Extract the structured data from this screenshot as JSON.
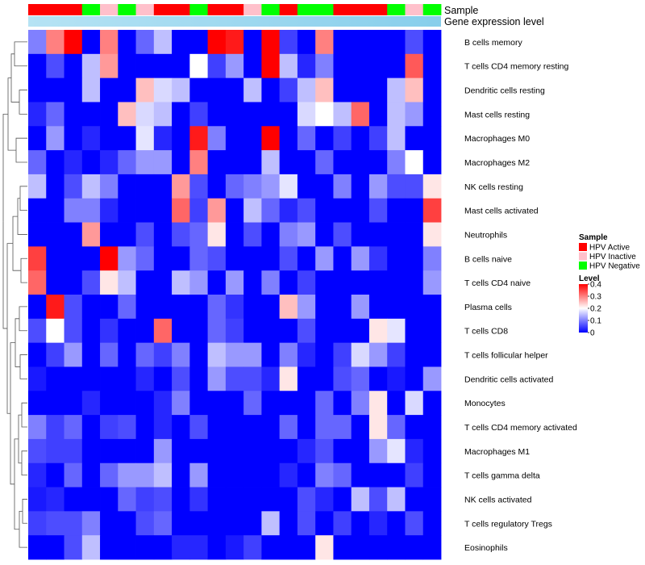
{
  "chart_data": {
    "type": "heatmap",
    "title": "",
    "track_labels": {
      "sample": "Sample",
      "gene_expression": "Gene expression level"
    },
    "rows": [
      "B cells memory",
      "T cells CD4 memory resting",
      "Dendritic cells resting",
      "Mast cells resting",
      "Macrophages M0",
      "Macrophages M2",
      "NK cells resting",
      "Mast cells activated",
      "Neutrophils",
      "B cells naive",
      "T cells CD4 naive",
      "Plasma cells",
      "T cells CD8",
      "T cells follicular helper",
      "Dendritic cells activated",
      "Monocytes",
      "T cells CD4 memory activated",
      "Macrophages M1",
      "T cells gamma delta",
      "NK cells activated",
      "T cells regulatory  Tregs",
      "Eosinophils"
    ],
    "samples": [
      "HPV Active",
      "HPV Active",
      "HPV Active",
      "HPV Negative",
      "HPV Inactive",
      "HPV Negative",
      "HPV Inactive",
      "HPV Active",
      "HPV Active",
      "HPV Negative",
      "HPV Active",
      "HPV Active",
      "HPV Inactive",
      "HPV Negative",
      "HPV Active",
      "HPV Negative",
      "HPV Negative",
      "HPV Active",
      "HPV Active",
      "HPV Active",
      "HPV Negative",
      "HPV Inactive",
      "HPV Negative"
    ],
    "values": [
      [
        0.1,
        0.3,
        0.4,
        0.0,
        0.3,
        0.0,
        0.08,
        0.15,
        0.0,
        0.0,
        0.4,
        0.38,
        0.0,
        0.4,
        0.05,
        0.0,
        0.3,
        0.0,
        0.0,
        0.0,
        0.0,
        0.06,
        0.0
      ],
      [
        0.0,
        0.06,
        0.0,
        0.15,
        0.28,
        0.0,
        0.0,
        0.0,
        0.0,
        0.2,
        0.05,
        0.12,
        0.0,
        0.4,
        0.15,
        0.03,
        0.1,
        0.0,
        0.0,
        0.0,
        0.0,
        0.33,
        0.0
      ],
      [
        0.0,
        0.0,
        0.0,
        0.15,
        0.0,
        0.0,
        0.25,
        0.17,
        0.15,
        0.0,
        0.0,
        0.0,
        0.15,
        0.0,
        0.05,
        0.15,
        0.25,
        0.0,
        0.0,
        0.0,
        0.15,
        0.25,
        0.0
      ],
      [
        0.03,
        0.08,
        0.0,
        0.0,
        0.0,
        0.25,
        0.17,
        0.15,
        0.0,
        0.05,
        0.0,
        0.0,
        0.0,
        0.0,
        0.0,
        0.17,
        0.2,
        0.15,
        0.32,
        0.0,
        0.15,
        0.12,
        0.0
      ],
      [
        0.0,
        0.12,
        0.0,
        0.03,
        0.0,
        0.0,
        0.18,
        0.03,
        0.0,
        0.38,
        0.1,
        0.0,
        0.0,
        0.4,
        0.0,
        0.08,
        0.0,
        0.05,
        0.0,
        0.05,
        0.15,
        0.0,
        0.0
      ],
      [
        0.08,
        0.0,
        0.03,
        0.0,
        0.03,
        0.08,
        0.12,
        0.12,
        0.0,
        0.3,
        0.0,
        0.0,
        0.0,
        0.15,
        0.0,
        0.0,
        0.08,
        0.0,
        0.0,
        0.0,
        0.1,
        0.2,
        0.0
      ],
      [
        0.15,
        0.0,
        0.06,
        0.15,
        0.1,
        0.0,
        0.0,
        0.0,
        0.28,
        0.06,
        0.0,
        0.08,
        0.1,
        0.12,
        0.18,
        0.0,
        0.0,
        0.1,
        0.0,
        0.12,
        0.06,
        0.06,
        0.22
      ],
      [
        0.0,
        0.0,
        0.1,
        0.1,
        0.03,
        0.0,
        0.0,
        0.0,
        0.32,
        0.05,
        0.28,
        0.0,
        0.15,
        0.08,
        0.03,
        0.06,
        0.0,
        0.0,
        0.0,
        0.06,
        0.0,
        0.0,
        0.35
      ],
      [
        0.0,
        0.0,
        0.0,
        0.28,
        0.0,
        0.0,
        0.06,
        0.0,
        0.06,
        0.08,
        0.22,
        0.0,
        0.06,
        0.0,
        0.1,
        0.12,
        0.0,
        0.06,
        0.0,
        0.0,
        0.0,
        0.0,
        0.22
      ],
      [
        0.35,
        0.0,
        0.0,
        0.0,
        0.4,
        0.12,
        0.08,
        0.0,
        0.0,
        0.08,
        0.06,
        0.0,
        0.0,
        0.0,
        0.06,
        0.0,
        0.12,
        0.0,
        0.12,
        0.04,
        0.0,
        0.0,
        0.1
      ],
      [
        0.32,
        0.0,
        0.0,
        0.06,
        0.22,
        0.15,
        0.0,
        0.0,
        0.15,
        0.12,
        0.0,
        0.12,
        0.0,
        0.1,
        0.0,
        0.05,
        0.0,
        0.0,
        0.0,
        0.0,
        0.0,
        0.0,
        0.12
      ],
      [
        0.0,
        0.38,
        0.06,
        0.0,
        0.0,
        0.08,
        0.0,
        0.0,
        0.0,
        0.0,
        0.08,
        0.04,
        0.0,
        0.0,
        0.25,
        0.12,
        0.0,
        0.0,
        0.12,
        0.0,
        0.0,
        0.0,
        0.0
      ],
      [
        0.06,
        0.2,
        0.06,
        0.0,
        0.04,
        0.0,
        0.0,
        0.32,
        0.0,
        0.0,
        0.08,
        0.05,
        0.0,
        0.0,
        0.0,
        0.06,
        0.0,
        0.0,
        0.0,
        0.22,
        0.18,
        0.0,
        0.0
      ],
      [
        0.0,
        0.05,
        0.12,
        0.0,
        0.08,
        0.0,
        0.08,
        0.05,
        0.1,
        0.0,
        0.15,
        0.12,
        0.12,
        0.0,
        0.1,
        0.03,
        0.0,
        0.05,
        0.17,
        0.12,
        0.05,
        0.0,
        0.0
      ],
      [
        0.02,
        0.0,
        0.0,
        0.0,
        0.0,
        0.0,
        0.03,
        0.0,
        0.06,
        0.0,
        0.12,
        0.06,
        0.06,
        0.03,
        0.22,
        0.0,
        0.0,
        0.06,
        0.08,
        0.0,
        0.02,
        0.0,
        0.12
      ],
      [
        0.0,
        0.0,
        0.0,
        0.03,
        0.0,
        0.0,
        0.0,
        0.03,
        0.1,
        0.0,
        0.0,
        0.0,
        0.08,
        0.0,
        0.0,
        0.0,
        0.08,
        0.0,
        0.1,
        0.22,
        0.0,
        0.17,
        0.0
      ],
      [
        0.1,
        0.05,
        0.08,
        0.0,
        0.05,
        0.06,
        0.0,
        0.03,
        0.0,
        0.06,
        0.0,
        0.0,
        0.0,
        0.0,
        0.08,
        0.0,
        0.08,
        0.08,
        0.0,
        0.22,
        0.08,
        0.0,
        0.0
      ],
      [
        0.06,
        0.05,
        0.05,
        0.0,
        0.0,
        0.0,
        0.0,
        0.12,
        0.0,
        0.0,
        0.0,
        0.0,
        0.0,
        0.0,
        0.0,
        0.03,
        0.06,
        0.0,
        0.0,
        0.12,
        0.18,
        0.03,
        0.0
      ],
      [
        0.03,
        0.0,
        0.08,
        0.0,
        0.08,
        0.12,
        0.12,
        0.15,
        0.0,
        0.12,
        0.0,
        0.0,
        0.0,
        0.0,
        0.03,
        0.0,
        0.1,
        0.08,
        0.0,
        0.0,
        0.0,
        0.05,
        0.0
      ],
      [
        0.02,
        0.03,
        0.0,
        0.0,
        0.0,
        0.08,
        0.05,
        0.06,
        0.0,
        0.04,
        0.0,
        0.0,
        0.0,
        0.0,
        0.0,
        0.06,
        0.03,
        0.0,
        0.15,
        0.06,
        0.15,
        0.0,
        0.0
      ],
      [
        0.05,
        0.06,
        0.06,
        0.1,
        0.0,
        0.0,
        0.06,
        0.08,
        0.0,
        0.0,
        0.0,
        0.0,
        0.0,
        0.15,
        0.0,
        0.06,
        0.0,
        0.05,
        0.0,
        0.03,
        0.0,
        0.06,
        0.0
      ],
      [
        0.0,
        0.0,
        0.06,
        0.15,
        0.0,
        0.0,
        0.0,
        0.0,
        0.03,
        0.03,
        0.0,
        0.02,
        0.05,
        0.0,
        0.0,
        0.0,
        0.22,
        0.0,
        0.0,
        0.0,
        0.0,
        0.0,
        0.0
      ]
    ],
    "legend": {
      "sample_title": "Sample",
      "sample_items": [
        {
          "label": "HPV Active",
          "color": "#FF0000"
        },
        {
          "label": "HPV Inactive",
          "color": "#FFC0CB"
        },
        {
          "label": "HPV Negative",
          "color": "#00FF00"
        }
      ],
      "level_title": "Level",
      "level_ticks": [
        "0.4",
        "0.3",
        "0.2",
        "0.1",
        "0"
      ],
      "level_tick_values": [
        0.4,
        0.3,
        0.2,
        0.1,
        0
      ],
      "range": [
        0,
        0.4
      ]
    },
    "colors": {
      "low": "#0000FF",
      "mid": "#FFFFFF",
      "high": "#FF0000",
      "gene_track": "#87CEEB"
    }
  }
}
